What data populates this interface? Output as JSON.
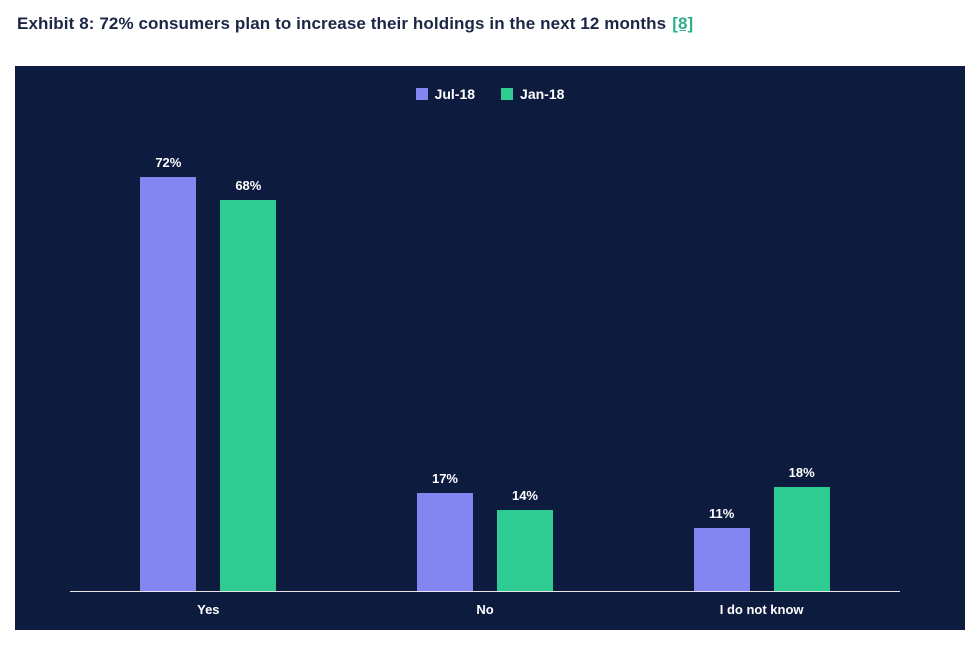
{
  "page": {
    "title": "Exhibit 8: 72% consumers  plan to increase their holdings in the next 12 months",
    "title_link": "[8]"
  },
  "chart_data": {
    "type": "bar",
    "title": "Exhibit 8: 72% consumers plan to increase their holdings in the next 12 months",
    "categories": [
      "Yes",
      "No",
      "I do not know"
    ],
    "series": [
      {
        "name": "Jul-18",
        "color": "#8585f2",
        "values": [
          72,
          17,
          11
        ]
      },
      {
        "name": "Jan-18",
        "color": "#2ecb92",
        "values": [
          68,
          14,
          18
        ]
      }
    ],
    "value_suffix": "%",
    "ylim": [
      0,
      80
    ],
    "legend_position": "top-center",
    "grid": false,
    "colors": {
      "panel_background": "#0d1b3e",
      "axis_line": "#e6e6e6",
      "label_text": "#ffffff",
      "title_text": "#1c2746",
      "link_text": "#2fae8f"
    }
  }
}
